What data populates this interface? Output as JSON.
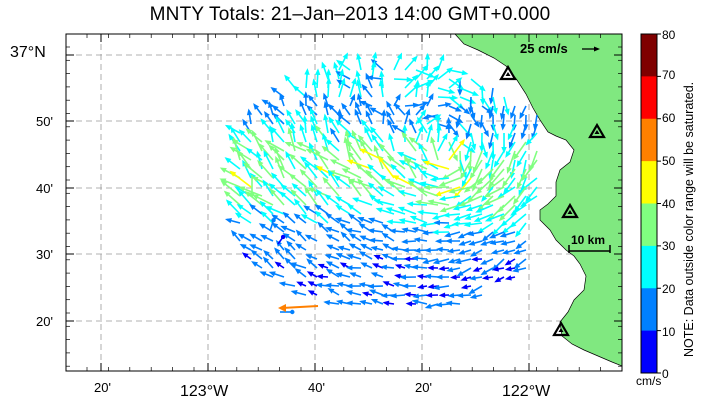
{
  "title": "MNTY Totals: 21–Jan–2013 14:00 GMT+0.000",
  "y_axis_labels": [
    {
      "text": "37°N",
      "big": true
    },
    {
      "text": "50'"
    },
    {
      "text": "40'"
    },
    {
      "text": "30'"
    },
    {
      "text": "20'"
    }
  ],
  "x_axis_labels": [
    {
      "text": "20'"
    },
    {
      "text": "123°W",
      "big": true
    },
    {
      "text": "40'"
    },
    {
      "text": "20'"
    },
    {
      "text": "122°W",
      "big": true
    }
  ],
  "reference_vector_label": "25 cm/s",
  "scale_bar_label": "10 km",
  "colorbar": {
    "ticks": [
      "80",
      "70",
      "60",
      "50",
      "40",
      "30",
      "20",
      "10",
      "0"
    ],
    "colors": [
      "#7f0000",
      "#ff0000",
      "#ff8000",
      "#ffff00",
      "#80ff80",
      "#00ffff",
      "#0080ff",
      "#0000ff"
    ],
    "units": "cm/s",
    "note": "NOTE: Data outside color range will be saturated."
  },
  "stations": [
    "station-1",
    "station-2",
    "station-3",
    "station-4"
  ],
  "colors": {
    "land": "#80e880",
    "grid": "#999999"
  }
}
